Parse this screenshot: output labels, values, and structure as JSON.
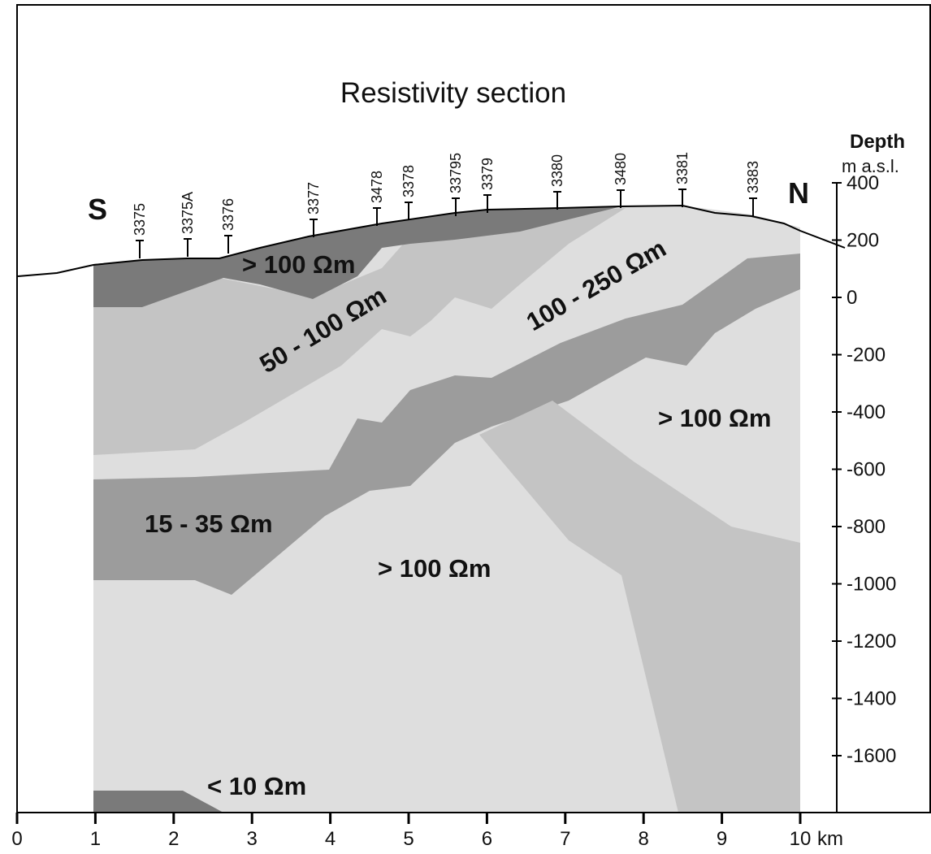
{
  "title": "Resistivity section",
  "direction_labels": {
    "south": "S",
    "north": "N"
  },
  "depth_axis": {
    "label_line1": "Depth",
    "label_line2": "m a.s.l.",
    "ticks": [
      "400",
      "200",
      "0",
      "-200",
      "-400",
      "-600",
      "-800",
      "-1000",
      "-1200",
      "-1400",
      "-1600"
    ]
  },
  "distance_axis": {
    "unit": "km",
    "ticks": [
      "0",
      "1",
      "2",
      "3",
      "4",
      "5",
      "6",
      "7",
      "8",
      "9",
      "10"
    ]
  },
  "stations": [
    "3375",
    "3375A",
    "3376",
    "3377",
    "3478",
    "3378",
    "33795",
    "3379",
    "3380",
    "3480",
    "3381",
    "3383"
  ],
  "zones": {
    "top_south": "> 100 Ωm",
    "upper_mid": "50 - 100 Ωm",
    "upper_north": "100 - 250 Ωm",
    "mid_north": "> 100 Ωm",
    "conductor": "15 - 35 Ωm",
    "lower_center": "> 100 Ωm",
    "bottom": "< 10 Ωm"
  },
  "colors": {
    "dark": "#7a7a7a",
    "medium": "#9c9c9c",
    "light": "#c4c4c4",
    "lightest": "#dedede",
    "outline": "#000000"
  }
}
